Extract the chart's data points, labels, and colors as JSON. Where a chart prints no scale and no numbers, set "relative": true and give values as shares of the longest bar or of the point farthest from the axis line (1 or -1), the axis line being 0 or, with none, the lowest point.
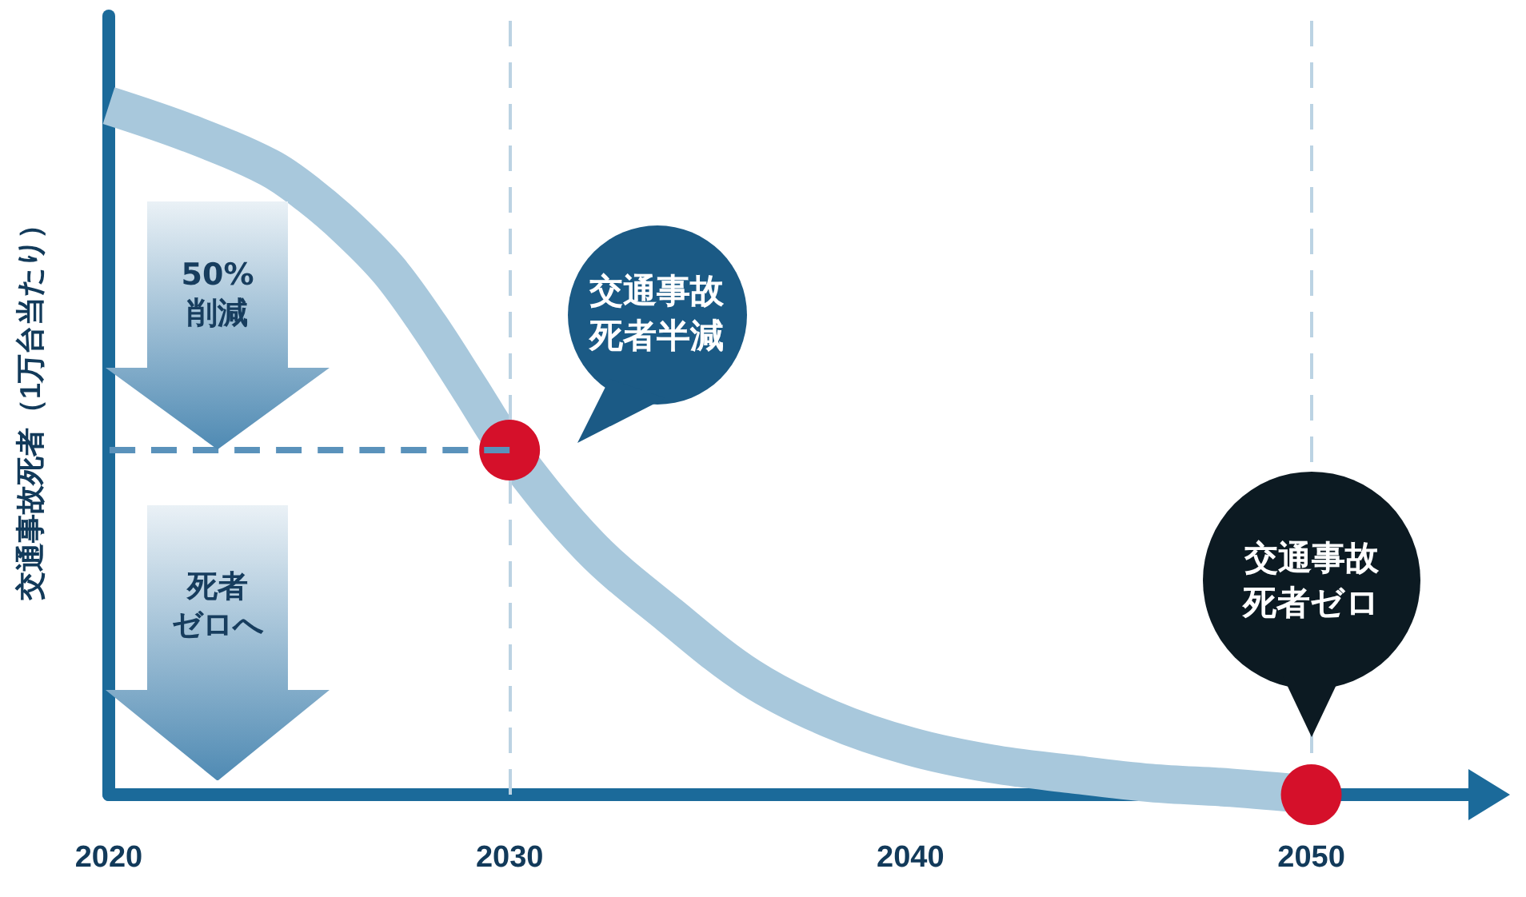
{
  "chart_data": {
    "type": "line",
    "relative": true,
    "ylabel": "交通事故死者（1万台当たり）",
    "xlim": [
      2020,
      2054
    ],
    "xticks": [
      2020,
      2030,
      2040,
      2050
    ],
    "tick_labels": "x",
    "grid": false,
    "series": [
      {
        "color": "#a8c8dc",
        "marker": "none",
        "line_style": "solid",
        "x": [
          2020,
          2022,
          2024,
          2025,
          2026,
          2027,
          2028,
          2029,
          2030,
          2032,
          2034,
          2036,
          2038,
          2040,
          2042,
          2044,
          2046,
          2048,
          2050
        ],
        "values": [
          1,
          0.96,
          0.91,
          0.87,
          0.82,
          0.76,
          0.68,
          0.59,
          0.5,
          0.36,
          0.26,
          0.17,
          0.11,
          0.07,
          0.045,
          0.03,
          0.017,
          0.01,
          0
        ]
      },
      {
        "type": "line",
        "color": "#5a92bb",
        "marker": "none",
        "line_style": "dashed",
        "x": [
          2030,
          2020
        ],
        "values": [
          0.5,
          0.5
        ]
      },
      {
        "type": "scatter",
        "color": "#d5102a",
        "marker": "circle",
        "x": [
          2030,
          2050
        ],
        "values": [
          0.5,
          0
        ]
      }
    ],
    "ref_lines": [
      {
        "axis": "x",
        "value": 2030,
        "color": "#bcd3e3",
        "line_style": "dashed"
      },
      {
        "axis": "x",
        "value": 2050,
        "color": "#bcd3e3",
        "line_style": "dashed"
      }
    ],
    "annotations": [
      "50%",
      "削減",
      "死者",
      "ゼロへ",
      "交通事故",
      "死者半減",
      "交通事故",
      "死者ゼロ"
    ]
  }
}
